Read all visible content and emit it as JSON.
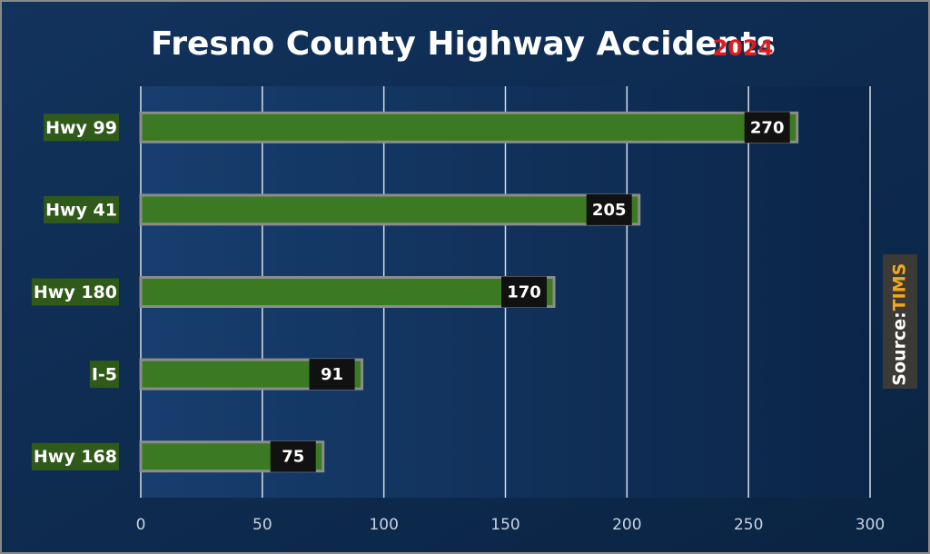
{
  "chart_data": {
    "type": "barh",
    "title": "Fresno County Highway Accidents",
    "subtitle": "2024",
    "source_label": "Source:",
    "source": "TIMS",
    "categories": [
      "Hwy 99",
      "Hwy 41",
      "Hwy 180",
      "I-5",
      "Hwy 168"
    ],
    "values": [
      270,
      205,
      170,
      91,
      75
    ],
    "color": "#3b7a22",
    "xlim": [
      0,
      300
    ],
    "xticks": [
      0,
      50,
      100,
      150,
      200,
      250,
      300
    ],
    "grid": true
  }
}
